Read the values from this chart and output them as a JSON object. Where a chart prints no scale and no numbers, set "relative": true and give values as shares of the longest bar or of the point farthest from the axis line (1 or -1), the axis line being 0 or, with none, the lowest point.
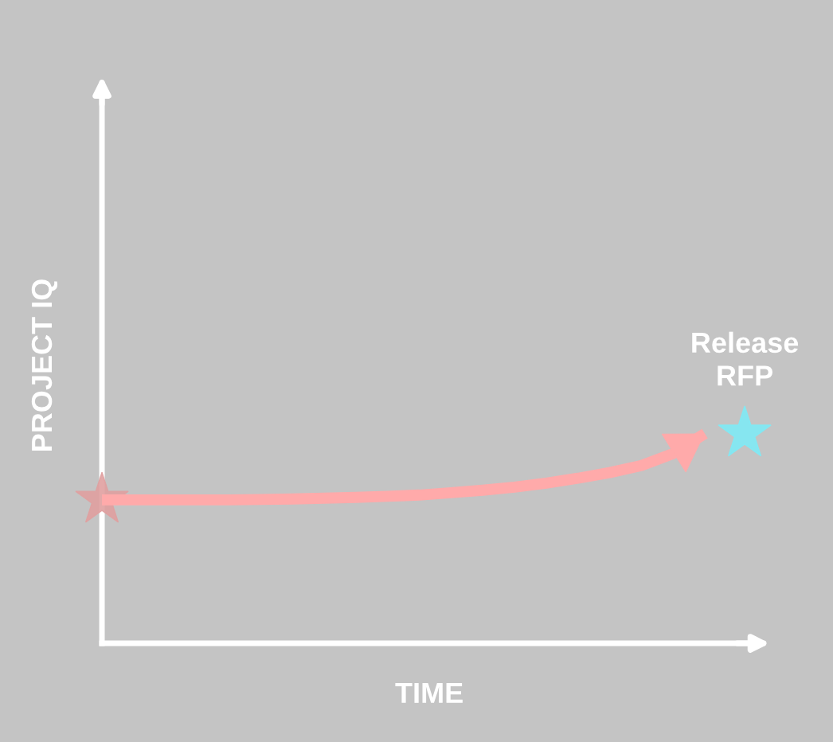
{
  "chart_data": {
    "type": "line",
    "relative": true,
    "xlabel": "TIME",
    "ylabel": "PROJECT IQ",
    "categories": [
      null,
      null,
      null,
      null,
      null,
      null,
      null,
      null,
      null,
      null,
      null,
      null,
      null,
      null,
      null,
      null,
      null,
      null,
      null,
      null
    ],
    "series": [
      {
        "color": "#ffaaaa",
        "values": [
          0.684,
          0.684,
          0.684,
          0.684,
          0.684,
          0.686,
          0.688,
          0.692,
          0.696,
          0.701,
          0.707,
          0.718,
          0.73,
          0.745,
          0.764,
          0.787,
          0.814,
          0.848,
          0.905,
          1.0
        ]
      }
    ],
    "annotations": [
      "Release\nRFP"
    ],
    "grid": false,
    "tick_labels": false,
    "marker": "none"
  }
}
